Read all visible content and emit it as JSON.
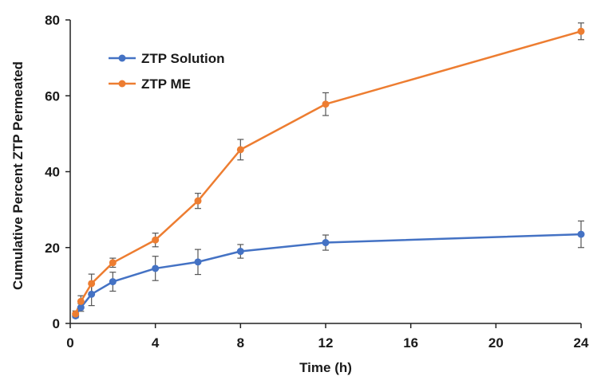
{
  "chart_data": {
    "type": "line",
    "title": "",
    "xlabel": "Time (h)",
    "ylabel": "Cumulative Percent ZTP Permeated",
    "xlim": [
      0,
      24
    ],
    "ylim": [
      0,
      80
    ],
    "xticks": [
      0,
      4,
      8,
      12,
      16,
      20,
      24
    ],
    "yticks": [
      0,
      20,
      40,
      60,
      80
    ],
    "grid": false,
    "legend_position": "top-left",
    "x": [
      0.25,
      0.5,
      1,
      2,
      4,
      6,
      8,
      12,
      24
    ],
    "series": [
      {
        "name": "ZTP Solution",
        "color": "#4472C4",
        "values": [
          2.0,
          4.2,
          7.7,
          11.0,
          14.5,
          16.2,
          19.0,
          21.3,
          23.5
        ],
        "errors": [
          0.5,
          1.0,
          3.0,
          2.5,
          3.2,
          3.3,
          1.8,
          2.0,
          3.5
        ]
      },
      {
        "name": "ZTP ME",
        "color": "#ED7D31",
        "values": [
          2.5,
          5.8,
          10.5,
          16.0,
          22.0,
          32.3,
          45.8,
          57.8,
          77.0
        ],
        "errors": [
          0.8,
          1.5,
          2.5,
          1.2,
          1.8,
          2.0,
          2.7,
          3.0,
          2.2
        ]
      }
    ]
  }
}
